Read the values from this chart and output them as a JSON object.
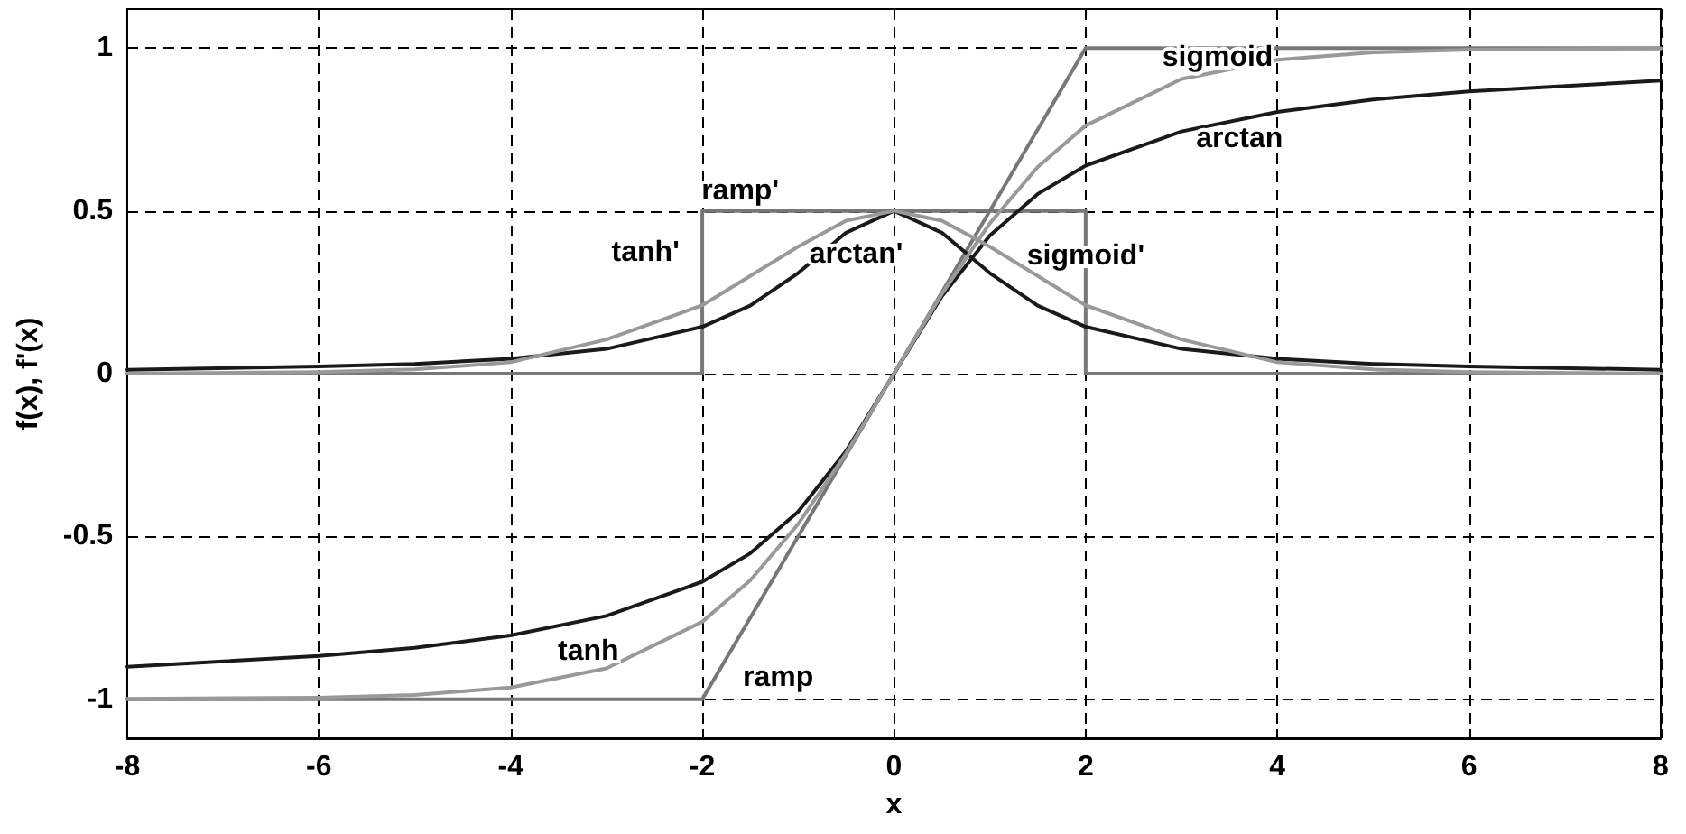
{
  "chart_data": {
    "type": "line",
    "xlabel": "x",
    "ylabel": "f(x), f'(x)",
    "xlim": [
      -8,
      8
    ],
    "xticks": [
      -8,
      -6,
      -4,
      -2,
      0,
      2,
      4,
      6,
      8
    ],
    "ylim": [
      -1.12,
      1.12
    ],
    "yticks": [
      -1,
      -0.5,
      0,
      0.5,
      1
    ],
    "grid": true,
    "marker": "none",
    "line_style": "solid",
    "series": [
      {
        "color": "#777777",
        "x": [
          -8,
          -2,
          2,
          8
        ],
        "values": [
          -1,
          -1,
          1,
          1
        ]
      },
      {
        "color": "#777777",
        "x": [
          -8,
          -2,
          -2,
          2,
          2,
          8
        ],
        "values": [
          0,
          0,
          0.5,
          0.5,
          0,
          0
        ]
      },
      {
        "color": "#1a1a1a",
        "x": [
          -8,
          -6,
          -5,
          -4,
          -3,
          -2,
          -1.5,
          -1,
          -0.5,
          0,
          0.5,
          1,
          1.5,
          2,
          3,
          4,
          5,
          6,
          8
        ],
        "values": [
          -0.9,
          -0.867,
          -0.842,
          -0.804,
          -0.744,
          -0.639,
          -0.552,
          -0.424,
          -0.238,
          0,
          0.238,
          0.424,
          0.552,
          0.639,
          0.744,
          0.804,
          0.842,
          0.867,
          0.9
        ]
      },
      {
        "color": "#1a1a1a",
        "x": [
          -8,
          -6,
          -5,
          -4,
          -3,
          -2,
          -1.5,
          -1,
          -0.5,
          0,
          0.5,
          1,
          1.5,
          2,
          3,
          4,
          5,
          6,
          8
        ],
        "values": [
          0.012,
          0.022,
          0.03,
          0.046,
          0.076,
          0.144,
          0.209,
          0.309,
          0.433,
          0.5,
          0.433,
          0.309,
          0.209,
          0.144,
          0.076,
          0.046,
          0.03,
          0.022,
          0.012
        ]
      },
      {
        "color": "#999999",
        "x": [
          -8,
          -6,
          -5,
          -4,
          -3,
          -2,
          -1.5,
          -1,
          -0.5,
          0,
          0.5,
          1,
          1.5,
          2,
          3,
          4,
          5,
          6,
          8
        ],
        "values": [
          -0.999,
          -0.995,
          -0.987,
          -0.964,
          -0.905,
          -0.762,
          -0.635,
          -0.462,
          -0.245,
          0,
          0.245,
          0.462,
          0.635,
          0.762,
          0.905,
          0.964,
          0.987,
          0.995,
          0.999
        ]
      },
      {
        "color": "#999999",
        "x": [
          -8,
          -6,
          -5,
          -4,
          -3,
          -2,
          -1.5,
          -1,
          -0.5,
          0,
          0.5,
          1,
          1.5,
          2,
          3,
          4,
          5,
          6,
          8
        ],
        "values": [
          0,
          0.005,
          0.013,
          0.035,
          0.105,
          0.21,
          0.3,
          0.39,
          0.47,
          0.5,
          0.47,
          0.39,
          0.3,
          0.21,
          0.105,
          0.035,
          0.013,
          0.005,
          0
        ]
      }
    ],
    "annotations": [
      {
        "text": "sigmoid",
        "x": 3,
        "y": 0.905
      },
      {
        "text": "arctan",
        "x": 4,
        "y": 0.804
      },
      {
        "text": "ramp'",
        "x": -2,
        "y": 0.5
      },
      {
        "text": "tanh'",
        "x": -1.5,
        "y": 0.3
      },
      {
        "text": "arctan'",
        "x": 0,
        "y": 0.5
      },
      {
        "text": "sigmoid'",
        "x": 2,
        "y": 0.21
      },
      {
        "text": "tanh",
        "x": -3,
        "y": -0.905
      },
      {
        "text": "ramp",
        "x": -2,
        "y": -1
      }
    ]
  }
}
